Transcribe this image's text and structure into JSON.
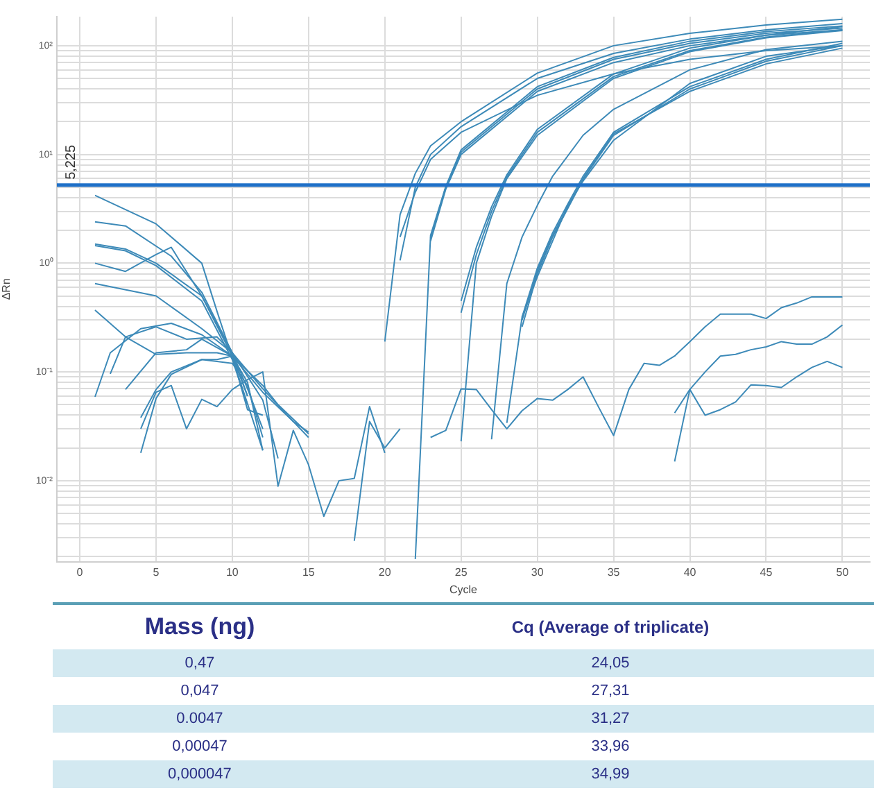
{
  "chart_data": [
    {
      "type": "line",
      "xlabel": "Cycle",
      "ylabel": "ΔRn",
      "log": "y",
      "grid": true,
      "legend": false,
      "marker": "none",
      "line_style": "solid",
      "xlim": [
        -1.5,
        51.8
      ],
      "xticks": [
        0,
        5,
        10,
        15,
        20,
        25,
        30,
        35,
        40,
        45,
        50
      ],
      "ylim": [
        0.0018,
        185
      ],
      "yticks": [
        {
          "value": 0.002,
          "label": null
        },
        {
          "value": 0.003,
          "label": null
        },
        {
          "value": 0.004,
          "label": null
        },
        {
          "value": 0.005,
          "label": null
        },
        {
          "value": 0.006,
          "label": null
        },
        {
          "value": 0.007,
          "label": null
        },
        {
          "value": 0.008,
          "label": null
        },
        {
          "value": 0.009,
          "label": null
        },
        {
          "value": 0.01,
          "label": "10⁻²"
        },
        {
          "value": 0.02,
          "label": null
        },
        {
          "value": 0.03,
          "label": null
        },
        {
          "value": 0.04,
          "label": null
        },
        {
          "value": 0.05,
          "label": null
        },
        {
          "value": 0.06,
          "label": null
        },
        {
          "value": 0.07,
          "label": null
        },
        {
          "value": 0.08,
          "label": null
        },
        {
          "value": 0.09,
          "label": null
        },
        {
          "value": 0.1,
          "label": "10⁻¹"
        },
        {
          "value": 0.2,
          "label": null
        },
        {
          "value": 0.3,
          "label": null
        },
        {
          "value": 0.4,
          "label": null
        },
        {
          "value": 0.5,
          "label": null
        },
        {
          "value": 0.6,
          "label": null
        },
        {
          "value": 0.7,
          "label": null
        },
        {
          "value": 0.8,
          "label": null
        },
        {
          "value": 0.9,
          "label": null
        },
        {
          "value": 1,
          "label": "10⁰"
        },
        {
          "value": 2,
          "label": null
        },
        {
          "value": 3,
          "label": null
        },
        {
          "value": 4,
          "label": null
        },
        {
          "value": 5,
          "label": null
        },
        {
          "value": 6,
          "label": null
        },
        {
          "value": 7,
          "label": null
        },
        {
          "value": 8,
          "label": null
        },
        {
          "value": 9,
          "label": null
        },
        {
          "value": 10,
          "label": "10¹"
        },
        {
          "value": 20,
          "label": null
        },
        {
          "value": 30,
          "label": null
        },
        {
          "value": 40,
          "label": null
        },
        {
          "value": 50,
          "label": null
        },
        {
          "value": 60,
          "label": null
        },
        {
          "value": 70,
          "label": null
        },
        {
          "value": 80,
          "label": null
        },
        {
          "value": 90,
          "label": null
        },
        {
          "value": 100,
          "label": "10²"
        }
      ],
      "ref_lines": [
        {
          "axis": "y",
          "value": 5.225,
          "label": "5,225",
          "color": "#1f70c8"
        }
      ],
      "series": [
        {
          "color": "#3d8ab8",
          "x": [
            1,
            5,
            8,
            9,
            10,
            11,
            12
          ],
          "values": [
            4.2,
            2.3,
            1.0,
            0.36,
            0.135,
            0.051,
            0.019
          ]
        },
        {
          "color": "#3d8ab8",
          "x": [
            1,
            3,
            6,
            8,
            10,
            11,
            12
          ],
          "values": [
            2.4,
            2.2,
            1.16,
            0.54,
            0.15,
            0.07,
            0.03
          ]
        },
        {
          "color": "#3d8ab8",
          "x": [
            1,
            3,
            5,
            8,
            10,
            11
          ],
          "values": [
            1.5,
            1.35,
            1.0,
            0.5,
            0.15,
            0.06
          ]
        },
        {
          "color": "#3d8ab8",
          "x": [
            1,
            3,
            5,
            8,
            10,
            11
          ],
          "values": [
            1.45,
            1.3,
            0.95,
            0.45,
            0.13,
            0.05
          ]
        },
        {
          "color": "#3d8ab8",
          "x": [
            1,
            3,
            5,
            6,
            8,
            10,
            11
          ],
          "values": [
            1.0,
            0.84,
            1.2,
            1.4,
            0.5,
            0.14,
            0.06
          ]
        },
        {
          "color": "#3d8ab8",
          "x": [
            1,
            5,
            8,
            10,
            12,
            14,
            15
          ],
          "values": [
            0.65,
            0.5,
            0.25,
            0.15,
            0.07,
            0.035,
            0.025
          ]
        },
        {
          "color": "#3d8ab8",
          "x": [
            1,
            3,
            5,
            7,
            9,
            10,
            12,
            14,
            15
          ],
          "values": [
            0.37,
            0.21,
            0.145,
            0.15,
            0.15,
            0.14,
            0.065,
            0.035,
            0.028
          ]
        },
        {
          "color": "#3d8ab8",
          "x": [
            1,
            2,
            4,
            6,
            8,
            10,
            12,
            13,
            15
          ],
          "values": [
            0.059,
            0.15,
            0.25,
            0.28,
            0.22,
            0.14,
            0.075,
            0.05,
            0.027
          ]
        },
        {
          "color": "#3d8ab8",
          "x": [
            2,
            3,
            5,
            7,
            9,
            10,
            12,
            13
          ],
          "values": [
            0.096,
            0.21,
            0.26,
            0.2,
            0.21,
            0.15,
            0.055,
            0.016
          ]
        },
        {
          "color": "#3d8ab8",
          "x": [
            3,
            5,
            7,
            8,
            10,
            11,
            12
          ],
          "values": [
            0.069,
            0.15,
            0.16,
            0.2,
            0.14,
            0.045,
            0.04
          ]
        },
        {
          "color": "#3d8ab8",
          "x": [
            4,
            5,
            6,
            8,
            9,
            10,
            11,
            12
          ],
          "values": [
            0.038,
            0.069,
            0.1,
            0.13,
            0.13,
            0.14,
            0.08,
            0.019
          ]
        },
        {
          "color": "#3d8ab8",
          "x": [
            4,
            5,
            6,
            8,
            10,
            11,
            12
          ],
          "values": [
            0.018,
            0.057,
            0.095,
            0.13,
            0.12,
            0.075,
            0.025
          ]
        },
        {
          "color": "#3d8ab8",
          "x": [
            4,
            5,
            6,
            7,
            8,
            9,
            10,
            11,
            12,
            13,
            14,
            15,
            16,
            17,
            18,
            19,
            20
          ],
          "values": [
            0.03,
            0.065,
            0.075,
            0.03,
            0.056,
            0.048,
            0.069,
            0.085,
            0.1,
            0.0089,
            0.029,
            0.014,
            0.0047,
            0.01,
            0.0105,
            0.048,
            0.018
          ]
        },
        {
          "color": "#3d8ab8",
          "x": [
            18,
            19,
            20,
            21
          ],
          "values": [
            0.0028,
            0.035,
            0.02,
            0.03
          ]
        },
        {
          "color": "#3d8ab8",
          "x": [
            20,
            21,
            22,
            23,
            25,
            30,
            35,
            40,
            45,
            50
          ],
          "values": [
            0.19,
            2.8,
            6.7,
            12,
            20,
            56,
            100,
            130,
            155,
            175
          ]
        },
        {
          "color": "#3d8ab8",
          "x": [
            21,
            22,
            23,
            25,
            30,
            35,
            40,
            45,
            50
          ],
          "values": [
            1.06,
            5,
            10,
            18,
            50,
            85,
            115,
            140,
            160
          ]
        },
        {
          "color": "#3d8ab8",
          "x": [
            21,
            22,
            23,
            25,
            30,
            35,
            40,
            45,
            50
          ],
          "values": [
            1.74,
            4.5,
            9,
            16,
            35,
            55,
            75,
            90,
            100
          ]
        },
        {
          "color": "#3d8ab8",
          "x": [
            22,
            23,
            24,
            25,
            30,
            35,
            40,
            45,
            50
          ],
          "values": [
            0.0019,
            1.8,
            5.1,
            11,
            42,
            78,
            110,
            135,
            152
          ]
        },
        {
          "color": "#3d8ab8",
          "x": [
            23,
            24,
            25,
            30,
            35,
            40,
            45,
            50
          ],
          "values": [
            1.7,
            5,
            10.5,
            40,
            75,
            105,
            130,
            145
          ]
        },
        {
          "color": "#3d8ab8",
          "x": [
            23,
            24,
            25,
            30,
            35,
            40,
            45,
            50
          ],
          "values": [
            1.6,
            4.8,
            10,
            38,
            70,
            100,
            125,
            140
          ]
        },
        {
          "color": "#3d8ab8",
          "x": [
            25,
            26,
            27,
            28,
            30,
            35,
            40,
            45,
            50
          ],
          "values": [
            0.35,
            1.2,
            3.0,
            6.2,
            16,
            52,
            90,
            120,
            140
          ]
        },
        {
          "color": "#3d8ab8",
          "x": [
            25,
            26,
            27,
            28,
            30,
            35,
            40,
            45,
            50
          ],
          "values": [
            0.45,
            1.4,
            3.3,
            6.5,
            17,
            55,
            95,
            125,
            150
          ]
        },
        {
          "color": "#3d8ab8",
          "x": [
            25,
            26,
            27,
            28,
            30,
            35,
            40,
            45,
            50
          ],
          "values": [
            0.023,
            1.0,
            2.7,
            6,
            15,
            50,
            88,
            118,
            138
          ]
        },
        {
          "color": "#3d8ab8",
          "x": [
            27,
            28,
            29,
            30,
            31,
            33,
            35,
            40,
            45,
            50
          ],
          "values": [
            0.024,
            0.65,
            1.74,
            3.4,
            6.3,
            15,
            26,
            60,
            92,
            110
          ]
        },
        {
          "color": "#3d8ab8",
          "x": [
            28,
            29,
            30,
            32,
            33,
            35,
            40,
            45,
            50
          ],
          "values": [
            0.034,
            0.32,
            0.75,
            3.4,
            5.7,
            13.5,
            45,
            80,
            100
          ]
        },
        {
          "color": "#3d8ab8",
          "x": [
            29,
            30,
            31,
            32,
            33,
            35,
            40,
            45,
            50
          ],
          "values": [
            0.26,
            0.8,
            1.74,
            3.2,
            5.9,
            15,
            40,
            72,
            100
          ]
        },
        {
          "color": "#3d8ab8",
          "x": [
            29,
            30,
            31,
            32,
            33,
            35,
            40,
            45,
            50
          ],
          "values": [
            0.32,
            0.9,
            1.9,
            3.5,
            6.3,
            16,
            42,
            75,
            105
          ]
        },
        {
          "color": "#3d8ab8",
          "x": [
            29,
            30,
            31,
            32,
            33,
            35,
            40,
            45,
            50
          ],
          "values": [
            0.3,
            0.85,
            1.8,
            3.3,
            6,
            15.5,
            38,
            68,
            95
          ]
        },
        {
          "color": "#3d8ab8",
          "x": [
            23,
            24,
            25,
            26,
            27,
            28,
            29,
            30,
            31,
            32,
            33,
            34,
            35,
            36,
            37,
            38,
            39,
            40,
            41,
            42,
            43,
            44,
            45,
            46,
            47,
            48,
            49,
            50
          ],
          "values": [
            0.025,
            0.029,
            0.07,
            0.069,
            0.045,
            0.03,
            0.044,
            0.057,
            0.055,
            0.069,
            0.09,
            0.048,
            0.026,
            0.069,
            0.12,
            0.115,
            0.14,
            0.19,
            0.26,
            0.34,
            0.34,
            0.34,
            0.31,
            0.39,
            0.43,
            0.49,
            0.49,
            0.49
          ]
        },
        {
          "color": "#3d8ab8",
          "x": [
            39,
            40,
            41,
            42,
            43,
            44,
            45,
            46,
            47,
            48,
            49,
            50
          ],
          "values": [
            0.015,
            0.069,
            0.1,
            0.14,
            0.145,
            0.16,
            0.17,
            0.19,
            0.18,
            0.18,
            0.21,
            0.27
          ]
        },
        {
          "color": "#3d8ab8",
          "x": [
            39,
            40,
            41,
            42,
            43,
            44,
            45,
            46,
            47,
            48,
            49,
            50
          ],
          "values": [
            0.042,
            0.069,
            0.04,
            0.045,
            0.053,
            0.076,
            0.075,
            0.072,
            0.09,
            0.11,
            0.125,
            0.11
          ]
        }
      ]
    },
    {
      "type": "other",
      "annotations": [
        "Mass (ng)",
        "Cq (Average of triplicate)",
        "0,47",
        "24,05",
        "0,047",
        "27,31",
        "0.0047",
        "31,27",
        "0,00047",
        "33,96",
        "0,000047",
        "34,99"
      ]
    }
  ]
}
